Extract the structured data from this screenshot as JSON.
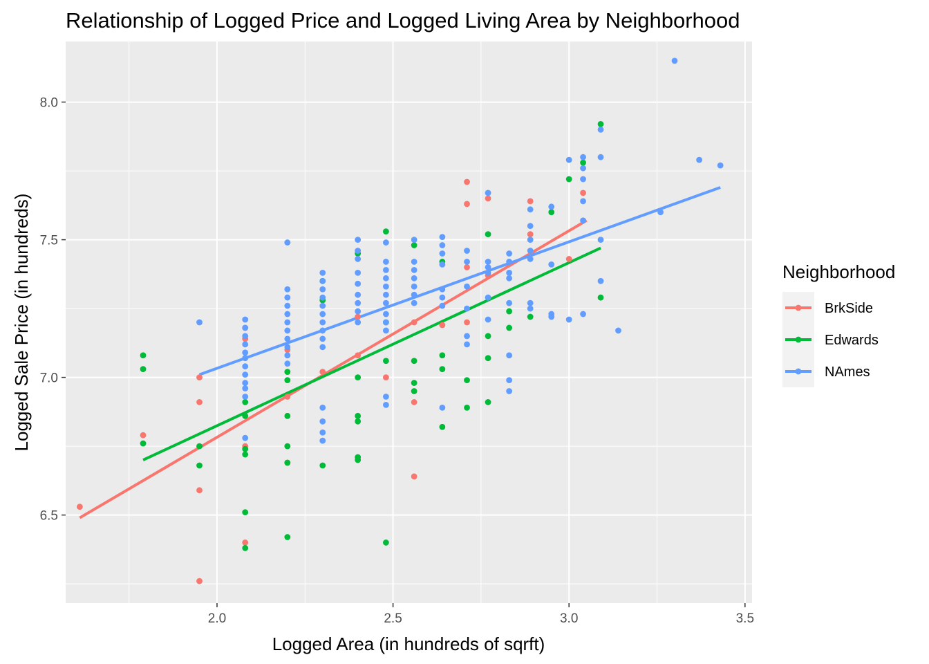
{
  "chart_data": {
    "type": "scatter",
    "title": "Relationship of Logged Price and Logged Living Area by Neighborhood",
    "xlabel": "Logged Area (in hundreds of sqrft)",
    "ylabel": "Logged Sale Price (in hundreds)",
    "xlim": [
      1.57,
      3.52
    ],
    "ylim": [
      6.18,
      8.22
    ],
    "x_ticks": [
      2.0,
      2.5,
      3.0,
      3.5
    ],
    "x_tick_labels": [
      "2.0",
      "2.5",
      "3.0",
      "3.5"
    ],
    "y_ticks": [
      6.5,
      7.0,
      7.5,
      8.0
    ],
    "y_tick_labels": [
      "6.5",
      "7.0",
      "7.5",
      "8.0"
    ],
    "grid": true,
    "background": "#ebebeb",
    "legend": {
      "title": "Neighborhood",
      "position": "right"
    },
    "series": [
      {
        "name": "BrkSide",
        "color": "#f8766d",
        "fit_line": [
          [
            1.61,
            6.49
          ],
          [
            3.05,
            7.57
          ]
        ],
        "points": [
          [
            1.61,
            6.53
          ],
          [
            1.79,
            6.79
          ],
          [
            1.95,
            7.0
          ],
          [
            1.95,
            6.91
          ],
          [
            1.95,
            6.59
          ],
          [
            1.95,
            6.26
          ],
          [
            2.08,
            7.18
          ],
          [
            2.08,
            7.14
          ],
          [
            2.08,
            6.75
          ],
          [
            2.08,
            6.4
          ],
          [
            2.2,
            7.1
          ],
          [
            2.2,
            6.93
          ],
          [
            2.2,
            6.69
          ],
          [
            2.3,
            7.02
          ],
          [
            2.4,
            7.22
          ],
          [
            2.4,
            7.08
          ],
          [
            2.48,
            7.0
          ],
          [
            2.56,
            7.2
          ],
          [
            2.56,
            6.91
          ],
          [
            2.56,
            6.64
          ],
          [
            2.64,
            7.19
          ],
          [
            2.71,
            7.71
          ],
          [
            2.71,
            7.63
          ],
          [
            2.71,
            7.4
          ],
          [
            2.71,
            7.2
          ],
          [
            2.77,
            7.65
          ],
          [
            2.77,
            7.37
          ],
          [
            2.89,
            7.64
          ],
          [
            2.89,
            7.52
          ],
          [
            3.0,
            7.43
          ],
          [
            3.04,
            7.67
          ]
        ]
      },
      {
        "name": "Edwards",
        "color": "#00ba38",
        "fit_line": [
          [
            1.79,
            6.7
          ],
          [
            3.09,
            7.47
          ]
        ],
        "points": [
          [
            1.79,
            7.08
          ],
          [
            1.79,
            7.03
          ],
          [
            1.79,
            6.76
          ],
          [
            1.95,
            6.75
          ],
          [
            1.95,
            6.68
          ],
          [
            2.08,
            6.91
          ],
          [
            2.08,
            6.86
          ],
          [
            2.08,
            6.74
          ],
          [
            2.08,
            6.72
          ],
          [
            2.08,
            6.51
          ],
          [
            2.08,
            6.38
          ],
          [
            2.2,
            7.02
          ],
          [
            2.2,
            6.99
          ],
          [
            2.2,
            6.86
          ],
          [
            2.2,
            6.75
          ],
          [
            2.2,
            6.69
          ],
          [
            2.2,
            6.42
          ],
          [
            2.3,
            7.35
          ],
          [
            2.3,
            7.28
          ],
          [
            2.3,
            6.68
          ],
          [
            2.4,
            7.45
          ],
          [
            2.4,
            7.0
          ],
          [
            2.4,
            6.86
          ],
          [
            2.4,
            6.84
          ],
          [
            2.4,
            6.71
          ],
          [
            2.4,
            6.7
          ],
          [
            2.48,
            7.53
          ],
          [
            2.48,
            7.2
          ],
          [
            2.48,
            7.06
          ],
          [
            2.48,
            6.4
          ],
          [
            2.56,
            7.48
          ],
          [
            2.56,
            7.06
          ],
          [
            2.56,
            6.98
          ],
          [
            2.56,
            6.95
          ],
          [
            2.64,
            7.42
          ],
          [
            2.64,
            7.08
          ],
          [
            2.64,
            7.03
          ],
          [
            2.64,
            6.82
          ],
          [
            2.71,
            6.99
          ],
          [
            2.71,
            6.89
          ],
          [
            2.77,
            7.52
          ],
          [
            2.77,
            7.15
          ],
          [
            2.77,
            7.07
          ],
          [
            2.77,
            6.91
          ],
          [
            2.83,
            7.24
          ],
          [
            2.83,
            7.18
          ],
          [
            2.89,
            7.22
          ],
          [
            2.95,
            7.6
          ],
          [
            3.0,
            7.72
          ],
          [
            3.04,
            7.78
          ],
          [
            3.09,
            7.92
          ],
          [
            3.09,
            7.29
          ]
        ]
      },
      {
        "name": "NAmes",
        "color": "#619cff",
        "fit_line": [
          [
            1.95,
            7.01
          ],
          [
            3.43,
            7.69
          ]
        ],
        "points": [
          [
            1.95,
            7.2
          ],
          [
            2.08,
            7.21
          ],
          [
            2.08,
            7.18
          ],
          [
            2.08,
            7.15
          ],
          [
            2.08,
            7.12
          ],
          [
            2.08,
            7.09
          ],
          [
            2.08,
            7.07
          ],
          [
            2.08,
            7.04
          ],
          [
            2.08,
            7.01
          ],
          [
            2.08,
            6.98
          ],
          [
            2.08,
            6.96
          ],
          [
            2.08,
            6.93
          ],
          [
            2.08,
            6.78
          ],
          [
            2.2,
            7.49
          ],
          [
            2.2,
            7.32
          ],
          [
            2.2,
            7.29
          ],
          [
            2.2,
            7.26
          ],
          [
            2.2,
            7.23
          ],
          [
            2.2,
            7.2
          ],
          [
            2.2,
            7.17
          ],
          [
            2.2,
            7.14
          ],
          [
            2.2,
            7.11
          ],
          [
            2.2,
            7.08
          ],
          [
            2.2,
            7.05
          ],
          [
            2.3,
            7.38
          ],
          [
            2.3,
            7.35
          ],
          [
            2.3,
            7.32
          ],
          [
            2.3,
            7.29
          ],
          [
            2.3,
            7.26
          ],
          [
            2.3,
            7.23
          ],
          [
            2.3,
            7.2
          ],
          [
            2.3,
            7.17
          ],
          [
            2.3,
            7.14
          ],
          [
            2.3,
            7.11
          ],
          [
            2.3,
            6.89
          ],
          [
            2.3,
            6.84
          ],
          [
            2.3,
            6.8
          ],
          [
            2.3,
            6.77
          ],
          [
            2.4,
            7.5
          ],
          [
            2.4,
            7.46
          ],
          [
            2.4,
            7.43
          ],
          [
            2.4,
            7.38
          ],
          [
            2.4,
            7.34
          ],
          [
            2.4,
            7.3
          ],
          [
            2.4,
            7.27
          ],
          [
            2.4,
            7.24
          ],
          [
            2.4,
            7.2
          ],
          [
            2.48,
            7.49
          ],
          [
            2.48,
            7.42
          ],
          [
            2.48,
            7.39
          ],
          [
            2.48,
            7.36
          ],
          [
            2.48,
            7.33
          ],
          [
            2.48,
            7.3
          ],
          [
            2.48,
            7.27
          ],
          [
            2.48,
            7.23
          ],
          [
            2.48,
            7.2
          ],
          [
            2.48,
            7.17
          ],
          [
            2.48,
            6.93
          ],
          [
            2.48,
            6.9
          ],
          [
            2.56,
            7.5
          ],
          [
            2.56,
            7.42
          ],
          [
            2.56,
            7.39
          ],
          [
            2.56,
            7.36
          ],
          [
            2.56,
            7.33
          ],
          [
            2.56,
            7.3
          ],
          [
            2.56,
            7.27
          ],
          [
            2.64,
            7.51
          ],
          [
            2.64,
            7.48
          ],
          [
            2.64,
            7.45
          ],
          [
            2.64,
            7.41
          ],
          [
            2.64,
            7.32
          ],
          [
            2.64,
            7.29
          ],
          [
            2.64,
            7.26
          ],
          [
            2.64,
            6.89
          ],
          [
            2.71,
            7.46
          ],
          [
            2.71,
            7.42
          ],
          [
            2.71,
            7.33
          ],
          [
            2.71,
            7.25
          ],
          [
            2.71,
            7.15
          ],
          [
            2.71,
            7.12
          ],
          [
            2.77,
            7.67
          ],
          [
            2.77,
            7.42
          ],
          [
            2.77,
            7.4
          ],
          [
            2.77,
            7.38
          ],
          [
            2.77,
            7.29
          ],
          [
            2.77,
            7.21
          ],
          [
            2.83,
            7.45
          ],
          [
            2.83,
            7.42
          ],
          [
            2.83,
            7.38
          ],
          [
            2.83,
            7.36
          ],
          [
            2.83,
            7.27
          ],
          [
            2.83,
            7.08
          ],
          [
            2.83,
            6.99
          ],
          [
            2.83,
            6.95
          ],
          [
            2.89,
            7.61
          ],
          [
            2.89,
            7.55
          ],
          [
            2.89,
            7.5
          ],
          [
            2.89,
            7.46
          ],
          [
            2.89,
            7.43
          ],
          [
            2.89,
            7.27
          ],
          [
            2.89,
            7.25
          ],
          [
            2.95,
            7.62
          ],
          [
            2.95,
            7.41
          ],
          [
            2.95,
            7.23
          ],
          [
            2.95,
            7.22
          ],
          [
            3.0,
            7.79
          ],
          [
            3.0,
            7.21
          ],
          [
            3.04,
            7.8
          ],
          [
            3.04,
            7.76
          ],
          [
            3.04,
            7.72
          ],
          [
            3.04,
            7.64
          ],
          [
            3.04,
            7.57
          ],
          [
            3.04,
            7.23
          ],
          [
            3.09,
            7.9
          ],
          [
            3.09,
            7.8
          ],
          [
            3.09,
            7.5
          ],
          [
            3.09,
            7.35
          ],
          [
            3.14,
            7.17
          ],
          [
            3.26,
            7.6
          ],
          [
            3.3,
            8.15
          ],
          [
            3.37,
            7.79
          ],
          [
            3.43,
            7.77
          ]
        ]
      }
    ]
  }
}
